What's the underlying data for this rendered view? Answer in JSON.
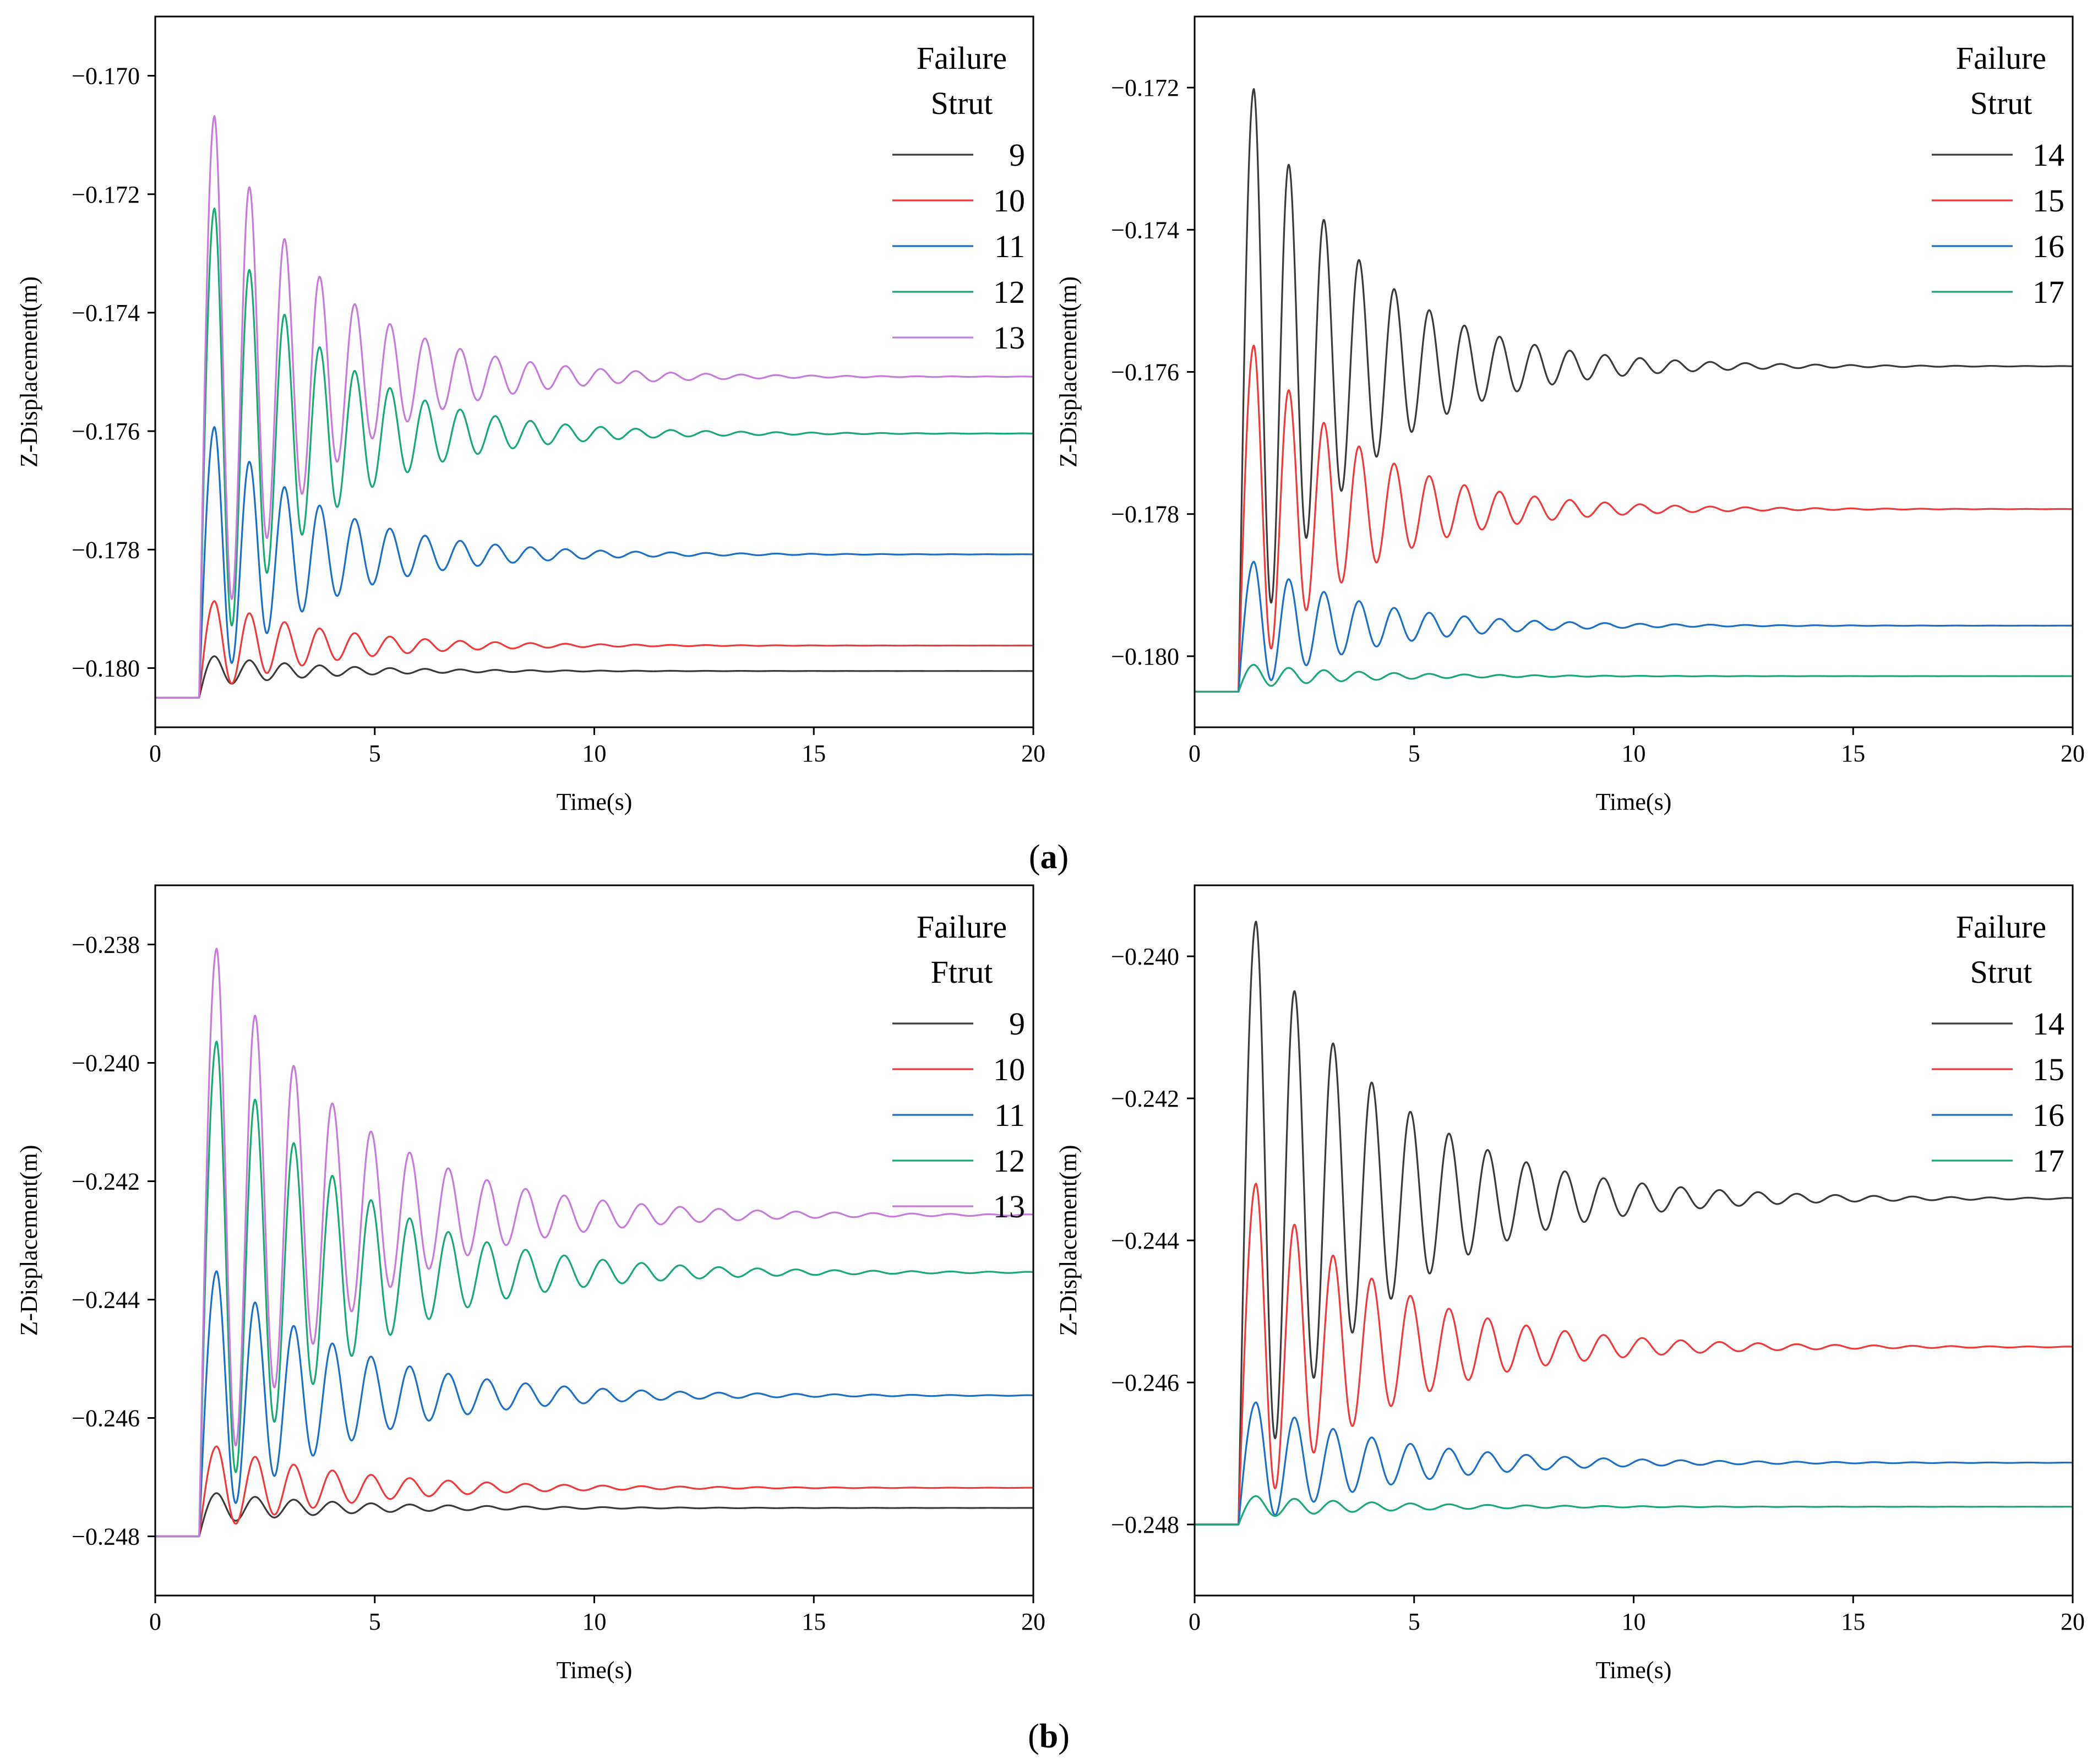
{
  "figure": {
    "captions": [
      {
        "open": "(",
        "letter": "a",
        "close": ")"
      },
      {
        "open": "(",
        "letter": "b",
        "close": ")"
      }
    ]
  },
  "chart_data": [
    {
      "type": "line",
      "id": "a-left",
      "xlabel": "Time(s)",
      "ylabel": "Z-Displacement(m)",
      "xlim": [
        0,
        20
      ],
      "ylim": [
        -0.181,
        -0.169
      ],
      "xticks": [
        0,
        5,
        10,
        15,
        20
      ],
      "xtick_labels": [
        "0",
        "5",
        "10",
        "15",
        "20"
      ],
      "yticks": [
        -0.18,
        -0.178,
        -0.176,
        -0.174,
        -0.172,
        -0.17
      ],
      "ytick_labels": [
        "−0.180",
        "−0.178",
        "−0.176",
        "−0.174",
        "−0.172",
        "−0.170"
      ],
      "grid": false,
      "legend": {
        "position": "top-right",
        "title_lines": [
          "Failure",
          "Strut"
        ]
      },
      "signal_model": {
        "initial": -0.1805,
        "step_time": 1.0,
        "rise_time": 0.35,
        "period": 0.8,
        "decay": 0.4
      },
      "series": [
        {
          "name": "9",
          "color": "#3a3a3a",
          "final": -0.18005,
          "amplitude": 0.00025
        },
        {
          "name": "10",
          "color": "#ee3a3a",
          "final": -0.17962,
          "amplitude": 0.00075
        },
        {
          "name": "11",
          "color": "#1b6fc4",
          "final": -0.17808,
          "amplitude": 0.00215
        },
        {
          "name": "12",
          "color": "#1aa873",
          "final": -0.17604,
          "amplitude": 0.0038
        },
        {
          "name": "13",
          "color": "#c77adb",
          "final": -0.17508,
          "amplitude": 0.0044
        }
      ]
    },
    {
      "type": "line",
      "id": "a-right",
      "xlabel": "Time(s)",
      "ylabel": "Z-Displacement(m)",
      "xlim": [
        0,
        20
      ],
      "ylim": [
        -0.181,
        -0.171
      ],
      "xticks": [
        0,
        5,
        10,
        15,
        20
      ],
      "xtick_labels": [
        "0",
        "5",
        "10",
        "15",
        "20"
      ],
      "yticks": [
        -0.18,
        -0.178,
        -0.176,
        -0.174,
        -0.172
      ],
      "ytick_labels": [
        "−0.180",
        "−0.178",
        "−0.176",
        "−0.174",
        "−0.172"
      ],
      "grid": false,
      "legend": {
        "position": "top-right",
        "title_lines": [
          "Failure",
          "Strut"
        ]
      },
      "signal_model": {
        "initial": -0.1805,
        "step_time": 1.0,
        "rise_time": 0.35,
        "period": 0.8,
        "decay": 0.4
      },
      "series": [
        {
          "name": "14",
          "color": "#3a3a3a",
          "final": -0.17592,
          "amplitude": 0.0039
        },
        {
          "name": "15",
          "color": "#ee3a3a",
          "final": -0.17793,
          "amplitude": 0.0023
        },
        {
          "name": "16",
          "color": "#1b6fc4",
          "final": -0.17957,
          "amplitude": 0.0009
        },
        {
          "name": "17",
          "color": "#1aa873",
          "final": -0.18028,
          "amplitude": 0.00016
        }
      ]
    },
    {
      "type": "line",
      "id": "b-left",
      "xlabel": "Time(s)",
      "ylabel": "Z-Displacement(m)",
      "xlim": [
        0,
        20
      ],
      "ylim": [
        -0.249,
        -0.237
      ],
      "xticks": [
        0,
        5,
        10,
        15,
        20
      ],
      "xtick_labels": [
        "0",
        "5",
        "10",
        "15",
        "20"
      ],
      "yticks": [
        -0.248,
        -0.246,
        -0.244,
        -0.242,
        -0.24,
        -0.238
      ],
      "ytick_labels": [
        "−0.248",
        "−0.246",
        "−0.244",
        "−0.242",
        "−0.240",
        "−0.238"
      ],
      "grid": false,
      "legend": {
        "position": "top-right",
        "title_lines": [
          "Failure",
          "Ftrut"
        ]
      },
      "signal_model": {
        "initial": -0.248,
        "step_time": 1.0,
        "rise_time": 0.4,
        "period": 0.88,
        "decay": 0.33
      },
      "series": [
        {
          "name": "9",
          "color": "#3a3a3a",
          "final": -0.24752,
          "amplitude": 0.00025
        },
        {
          "name": "10",
          "color": "#ee3a3a",
          "final": -0.24718,
          "amplitude": 0.0007
        },
        {
          "name": "11",
          "color": "#1b6fc4",
          "final": -0.24562,
          "amplitude": 0.0021
        },
        {
          "name": "12",
          "color": "#1aa873",
          "final": -0.24354,
          "amplitude": 0.0039
        },
        {
          "name": "13",
          "color": "#c77adb",
          "final": -0.24257,
          "amplitude": 0.0045
        }
      ]
    },
    {
      "type": "line",
      "id": "b-right",
      "xlabel": "Time(s)",
      "ylabel": "Z-Displacement(m)",
      "xlim": [
        0,
        20
      ],
      "ylim": [
        -0.249,
        -0.239
      ],
      "xticks": [
        0,
        5,
        10,
        15,
        20
      ],
      "xtick_labels": [
        "0",
        "5",
        "10",
        "15",
        "20"
      ],
      "yticks": [
        -0.248,
        -0.246,
        -0.244,
        -0.242,
        -0.24
      ],
      "ytick_labels": [
        "−0.248",
        "−0.246",
        "−0.244",
        "−0.242",
        "−0.240"
      ],
      "grid": false,
      "legend": {
        "position": "top-right",
        "title_lines": [
          "Failure",
          "Strut"
        ]
      },
      "signal_model": {
        "initial": -0.248,
        "step_time": 1.0,
        "rise_time": 0.4,
        "period": 0.88,
        "decay": 0.33
      },
      "series": [
        {
          "name": "14",
          "color": "#3a3a3a",
          "final": -0.24341,
          "amplitude": 0.0039
        },
        {
          "name": "15",
          "color": "#ee3a3a",
          "final": -0.2455,
          "amplitude": 0.0023
        },
        {
          "name": "16",
          "color": "#1b6fc4",
          "final": -0.24713,
          "amplitude": 0.00085
        },
        {
          "name": "17",
          "color": "#1aa873",
          "final": -0.24775,
          "amplitude": 0.00015
        }
      ]
    }
  ]
}
